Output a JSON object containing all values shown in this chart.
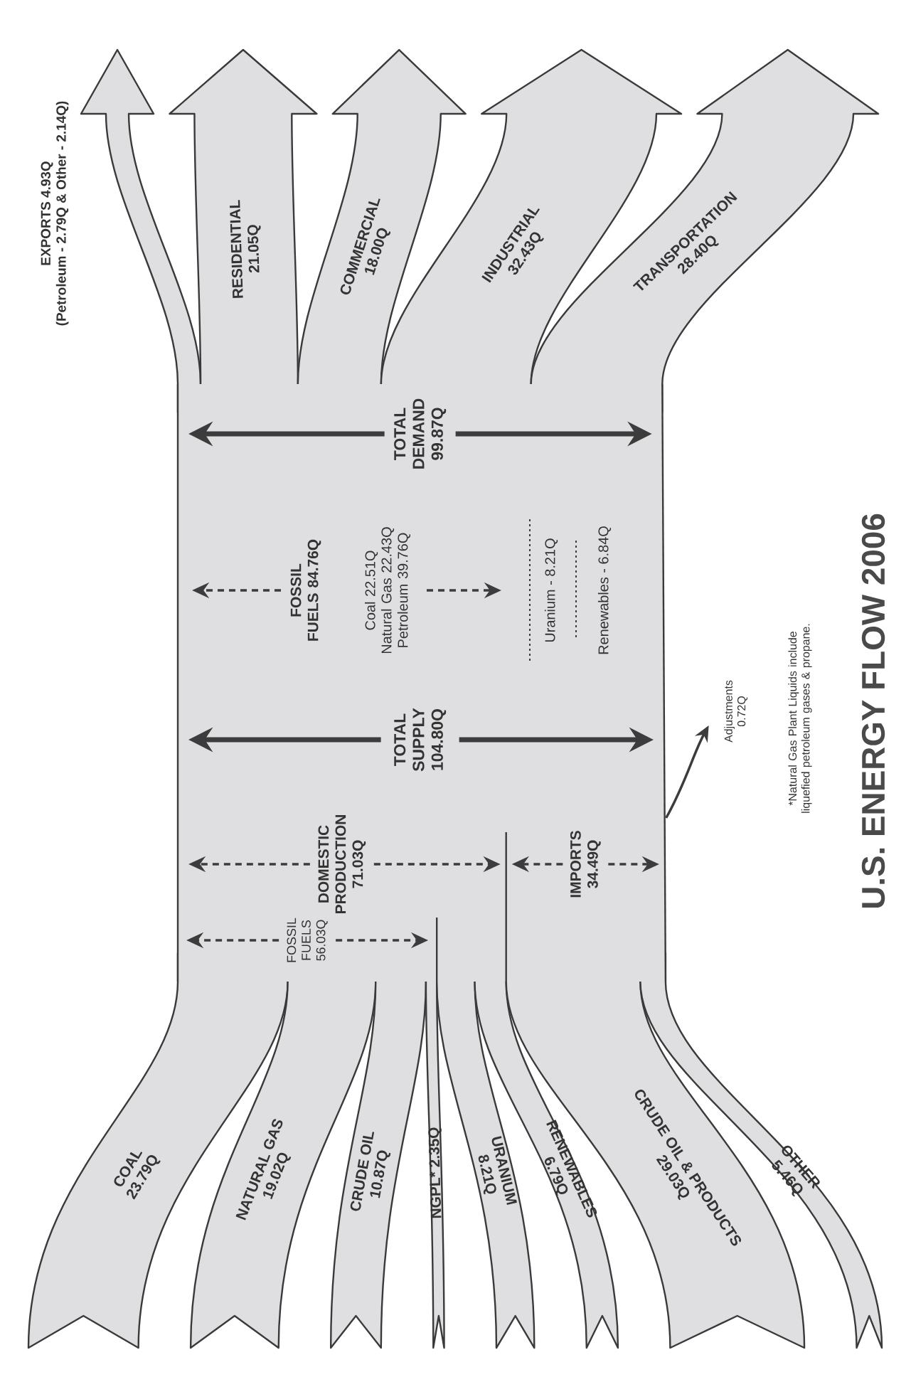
{
  "chart_data": {
    "type": "other",
    "title": "U.S. ENERGY FLOW 2006",
    "categories": [
      "COAL",
      "NATURAL GAS",
      "CRUDE OIL",
      "NGPL*",
      "URANIUM",
      "RENEWABLES",
      "CRUDE OIL & PRODUCTS",
      "OTHER",
      "EXPORTS",
      "RESIDENTIAL",
      "COMMERCIAL",
      "INDUSTRIAL",
      "TRANSPORTATION"
    ],
    "series": [
      {
        "color": "#dfdfe1",
        "values": [
          23.79,
          19.02,
          10.87,
          2.35,
          8.21,
          6.79,
          29.03,
          5.46,
          null,
          null,
          null,
          null,
          null
        ],
        "value_labels": [
          "23.79Q",
          "19.02Q",
          "10.87Q",
          "2.35Q",
          "8.21Q",
          "6.79Q",
          "29.03Q",
          "5.46Q",
          null,
          null,
          null,
          null,
          null
        ]
      },
      {
        "color": "#dfdfe1",
        "values": [
          null,
          null,
          null,
          null,
          null,
          null,
          null,
          null,
          4.93,
          21.05,
          18.0,
          32.43,
          28.4
        ],
        "value_labels": [
          null,
          null,
          null,
          null,
          null,
          null,
          null,
          null,
          "4.93Q",
          "21.05Q",
          "18.00Q",
          "32.43Q",
          "28.40Q"
        ]
      }
    ],
    "annotations": [
      "(Petroleum - 2.79Q & Other - 2.14Q)",
      "TOTAL DEMAND 99.87Q",
      "FOSSIL FUELS 84.76Q",
      "Coal 22.51Q",
      "Natural Gas 22.43Q",
      "Petroleum 39.76Q",
      "Uranium - 8.21Q",
      "Renewables - 6.84Q",
      "TOTAL SUPPLY 104.80Q",
      "DOMESTIC PRODUCTION 71.03Q",
      "IMPORTS 34.49Q",
      "Adjustments 0.72Q",
      "FOSSIL FUELS 56.03Q",
      "*Natural Gas Plant Liquids include liquefied petroleum gases & propane."
    ]
  }
}
